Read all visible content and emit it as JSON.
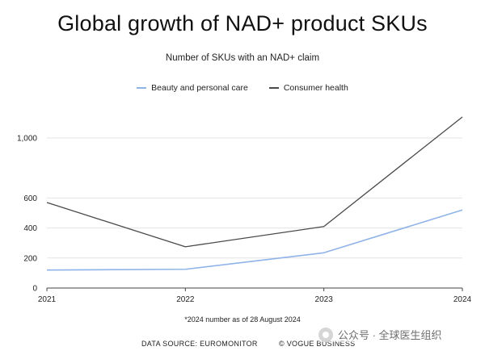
{
  "chart_data": {
    "type": "line",
    "title": "Global growth of NAD+ product SKUs",
    "subtitle": "Number of SKUs with an NAD+ claim",
    "categories": [
      "2021",
      "2022",
      "2023",
      "2024"
    ],
    "series": [
      {
        "name": "Beauty and personal care",
        "color": "#8fb3e8",
        "values": [
          120,
          125,
          235,
          520
        ]
      },
      {
        "name": "Consumer health",
        "color": "#4a4a4a",
        "values": [
          570,
          275,
          410,
          1140
        ]
      }
    ],
    "yticks": [
      0,
      200,
      400,
      600,
      1000
    ],
    "ytick_labels": [
      "0",
      "200",
      "400",
      "600",
      "1,000"
    ],
    "ylim": [
      0,
      1200
    ],
    "xlabel": "",
    "ylabel": "",
    "legend_position": "top-center"
  },
  "footnote": "*2024 number as of 28 August 2024",
  "source": "DATA SOURCE: EUROMONITOR",
  "copyright": "© VOGUE BUSINESS",
  "watermark": "公众号 · 全球医生组织"
}
